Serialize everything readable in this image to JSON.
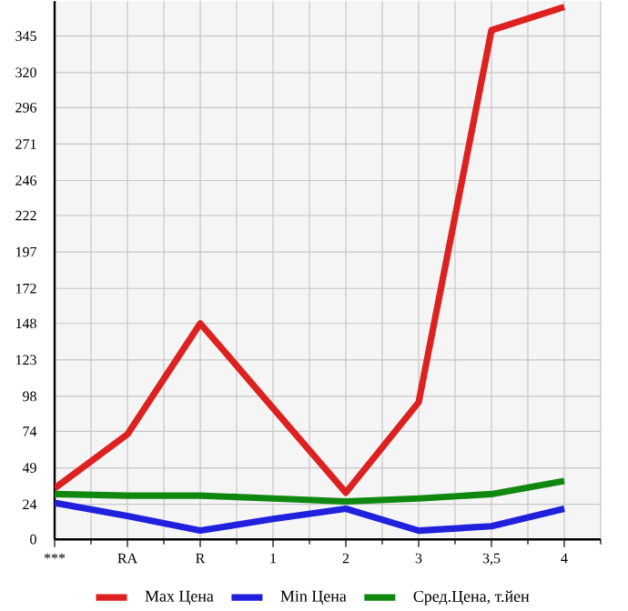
{
  "chart_data": {
    "type": "line",
    "categories": [
      "***",
      "RA",
      "R",
      "1",
      "2",
      "3",
      "3,5",
      "4"
    ],
    "series": [
      {
        "name": "Max Цена",
        "color": "#dd2020",
        "values": [
          35,
          72,
          148,
          90,
          32,
          94,
          349,
          365
        ]
      },
      {
        "name": "Min Цена",
        "color": "#2020dd",
        "values": [
          25,
          16,
          6,
          14,
          21,
          6,
          9,
          21
        ]
      },
      {
        "name": "Сред.Цена, т.йен",
        "color": "#108810",
        "values": [
          31,
          30,
          30,
          28,
          26,
          28,
          31,
          40
        ]
      }
    ],
    "ylim": [
      0,
      369
    ],
    "yticks": [
      0,
      24,
      49,
      74,
      98,
      123,
      148,
      172,
      197,
      222,
      246,
      271,
      296,
      320,
      345
    ],
    "grid": true,
    "legend": "bottom",
    "marker": "none",
    "line_style": "solid"
  }
}
